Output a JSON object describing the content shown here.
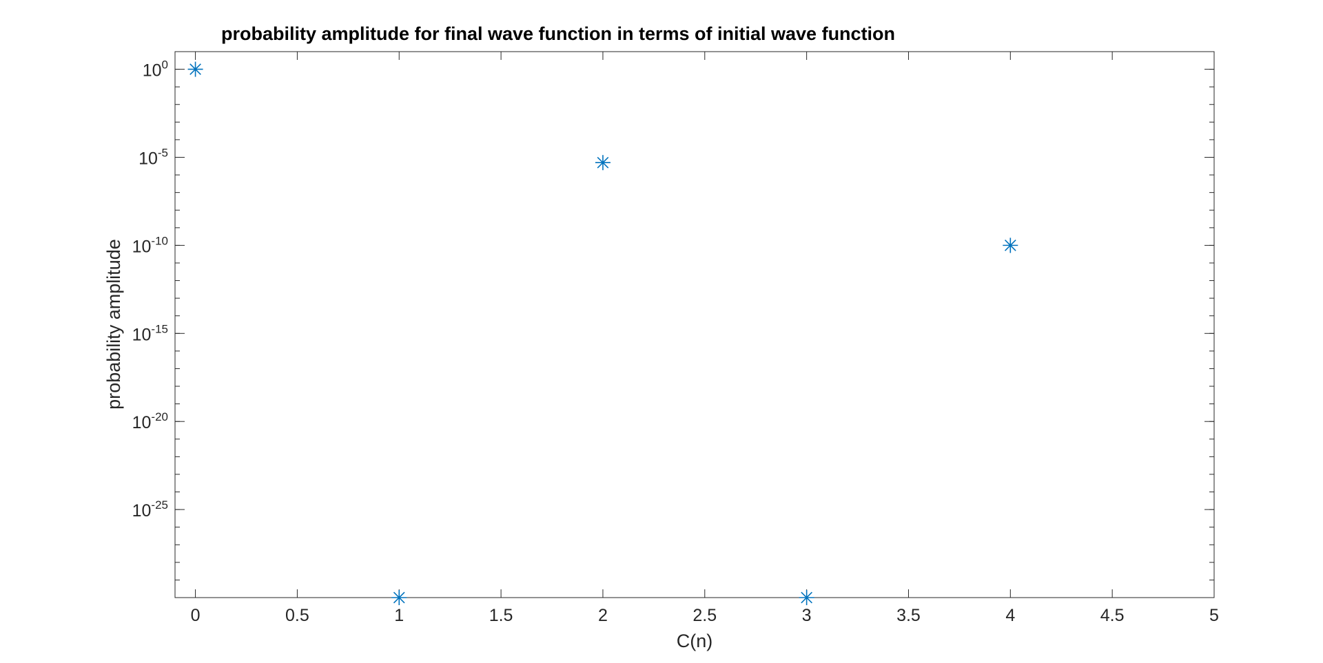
{
  "chart_data": {
    "type": "scatter",
    "title": "probability amplitude for final wave function in terms of initial wave function",
    "xlabel": "C(n)",
    "ylabel": "probability amplitude",
    "xlim": [
      -0.1,
      5
    ],
    "ylim_log10": [
      -30,
      1
    ],
    "y_scale": "log",
    "x_ticks": [
      0,
      0.5,
      1,
      1.5,
      2,
      2.5,
      3,
      3.5,
      4,
      4.5,
      5
    ],
    "x_tick_labels": [
      "0",
      "0.5",
      "1",
      "1.5",
      "2",
      "2.5",
      "3",
      "3.5",
      "4",
      "4.5",
      "5"
    ],
    "y_ticks": [
      {
        "base": "10",
        "exp": "0",
        "log10": 0
      },
      {
        "base": "10",
        "exp": "-5",
        "log10": -5
      },
      {
        "base": "10",
        "exp": "-10",
        "log10": -10
      },
      {
        "base": "10",
        "exp": "-15",
        "log10": -15
      },
      {
        "base": "10",
        "exp": "-20",
        "log10": -20
      },
      {
        "base": "10",
        "exp": "-25",
        "log10": -25
      }
    ],
    "grid": false,
    "marker": "asterisk",
    "marker_color": "#0072BD",
    "x": [
      0,
      1,
      2,
      3,
      4
    ],
    "y": [
      1,
      1e-30,
      5e-06,
      1e-30,
      1e-10
    ]
  }
}
